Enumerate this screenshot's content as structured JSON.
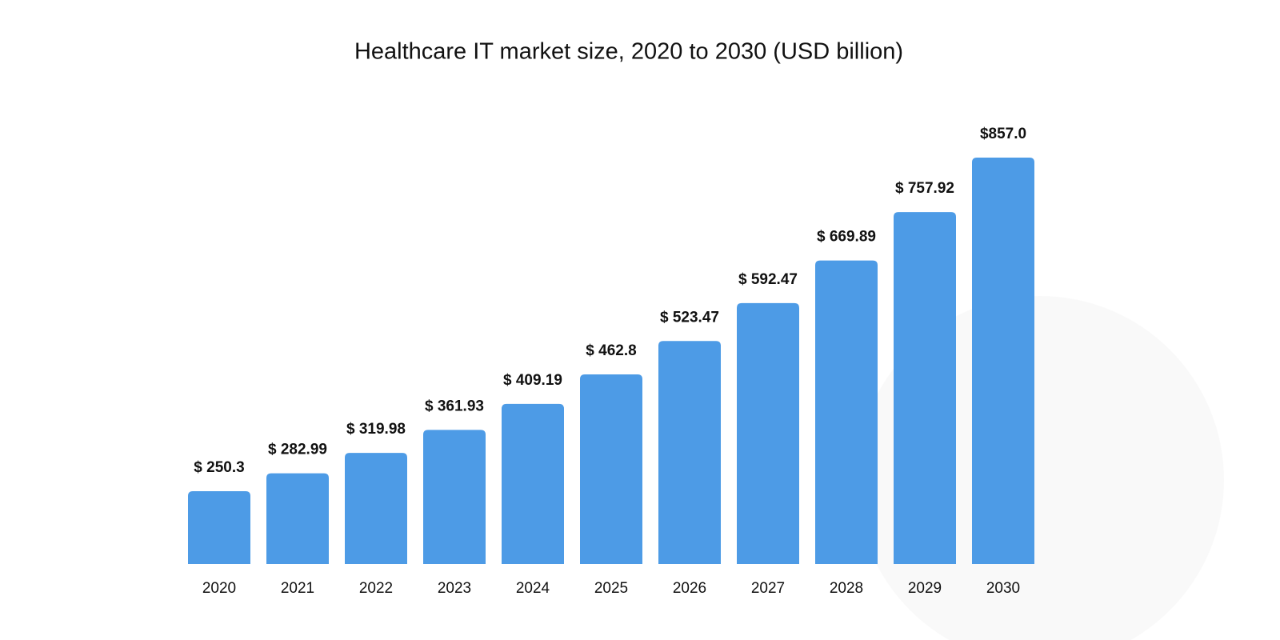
{
  "chart_data": {
    "type": "bar",
    "title": "Healthcare IT market size, 2020 to 2030 (USD billion)",
    "categories": [
      "2020",
      "2021",
      "2022",
      "2023",
      "2024",
      "2025",
      "2026",
      "2027",
      "2028",
      "2029",
      "2030"
    ],
    "values": [
      250.3,
      282.99,
      319.98,
      361.93,
      409.19,
      462.8,
      523.47,
      592.47,
      669.89,
      757.92,
      857.0
    ],
    "value_labels": [
      "$ 250.3",
      "$ 282.99",
      "$ 319.98",
      "$ 361.93",
      "$ 409.19",
      "$ 462.8",
      "$ 523.47",
      "$ 592.47",
      "$ 669.89",
      "$ 757.92",
      "$857.0"
    ],
    "color": "#4d9be6",
    "ylim": [
      118,
      857
    ]
  }
}
